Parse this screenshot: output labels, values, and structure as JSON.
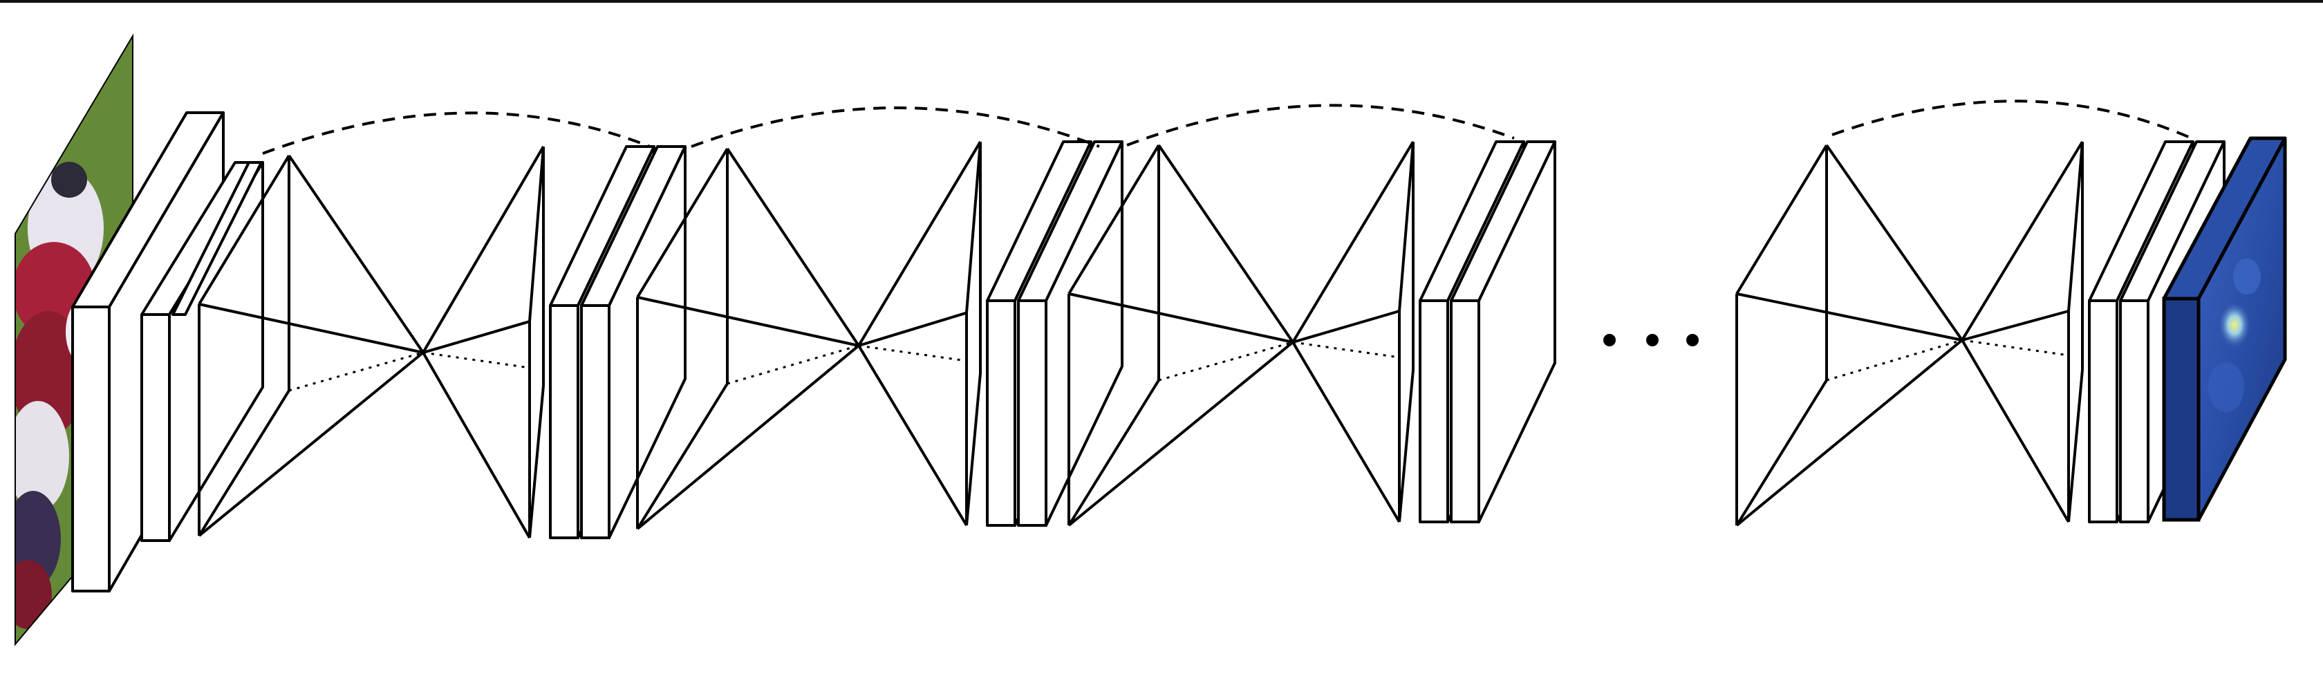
{
  "title": "",
  "colors": {
    "line": "#000000",
    "panel_fill": "#ffffff",
    "input_grass": "#6b8f3a",
    "input_jersey_red": "#a8213a",
    "input_jersey_white": "#e8e4ee",
    "output_heatmap": "#2a4fa8",
    "output_heatmap_dark": "#1c3a86",
    "output_hotspot": "#e8e05a"
  },
  "elements": {
    "input_image": {
      "icon": "photo-lacrosse-players"
    },
    "output_heatmap": {
      "icon": "pose-heatmap"
    },
    "ellipsis": {
      "icon": "ellipsis-dots"
    },
    "hourglass_modules": [
      {
        "name": "hourglass-1",
        "visible": true
      },
      {
        "name": "hourglass-2",
        "visible": true
      },
      {
        "name": "hourglass-3",
        "visible": true
      },
      {
        "name": "hourglass-4",
        "visible": true
      }
    ]
  }
}
